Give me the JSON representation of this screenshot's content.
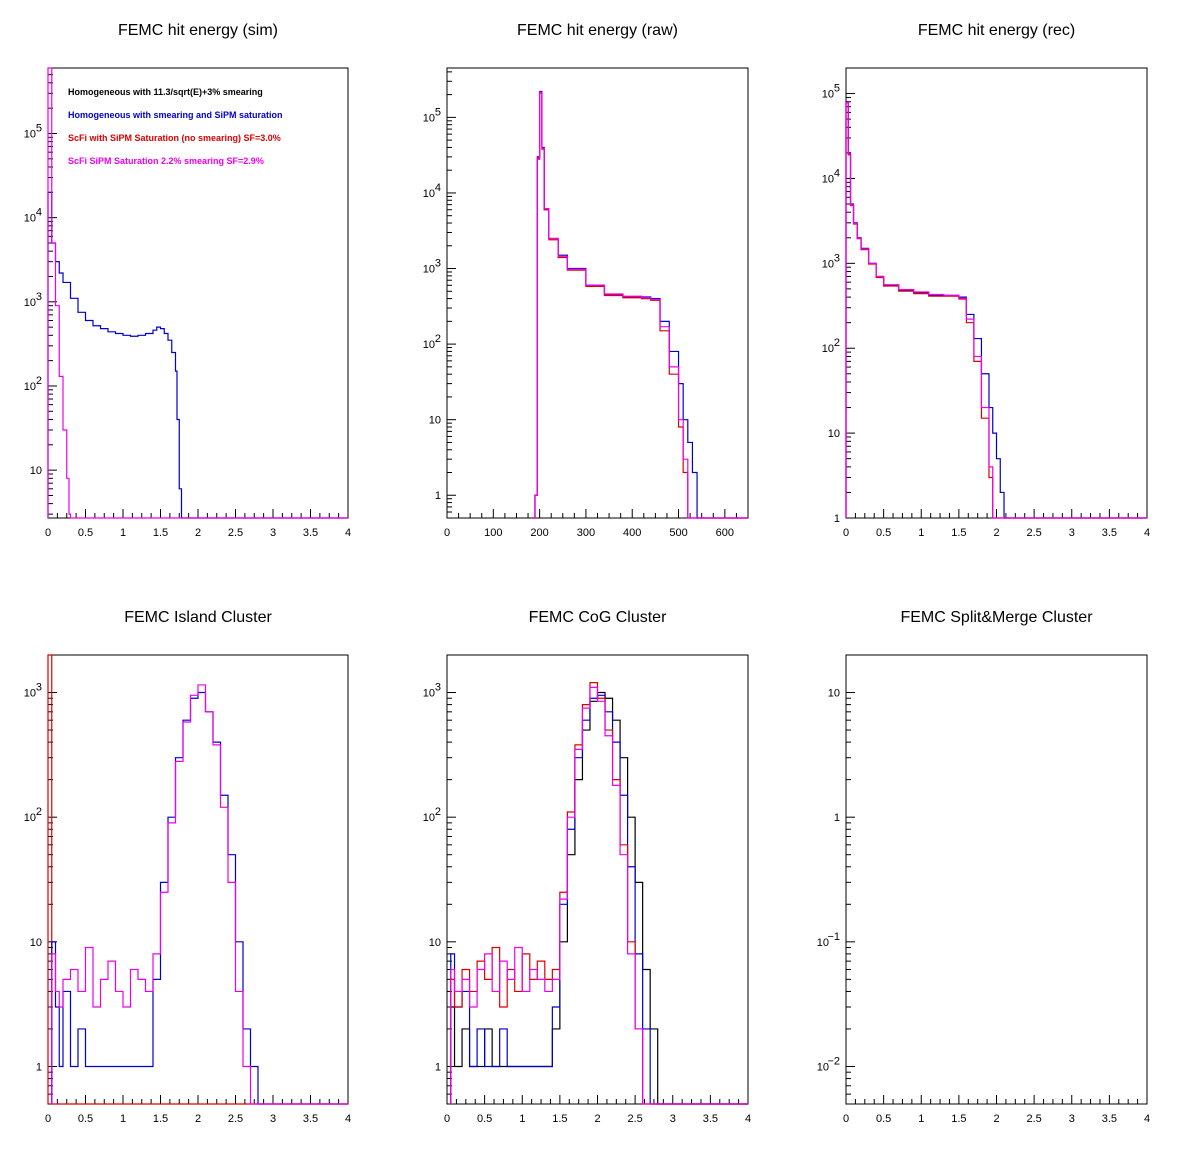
{
  "colors": {
    "black": "#000000",
    "blue": "#0000cc",
    "red": "#dd0000",
    "magenta": "#ee00ee"
  },
  "legend": [
    {
      "text": "Homogeneous with 11.3/sqrt(E)+3% smearing",
      "color": "#000000"
    },
    {
      "text": "Homogeneous with smearing and SiPM saturation",
      "color": "#0000cc"
    },
    {
      "text": "ScFi with SiPM Saturation (no smearing) SF=3.0%",
      "color": "#dd0000"
    },
    {
      "text": "ScFi SiPM Saturation 2.2% smearing SF=2.9%",
      "color": "#ee00ee"
    }
  ],
  "chart_data": [
    {
      "type": "line",
      "title": "FEMC hit energy (sim)",
      "logy": true,
      "xlim": [
        0,
        4
      ],
      "ylim": [
        2.7,
        600000
      ],
      "xticklabels": [
        "0",
        "0.5",
        "1",
        "1.5",
        "2",
        "2.5",
        "3",
        "3.5",
        "4"
      ],
      "yticks": [
        {
          "v": 10,
          "b": "10",
          "e": ""
        },
        {
          "v": 100,
          "b": "10",
          "e": "2"
        },
        {
          "v": 1000,
          "b": "10",
          "e": "3"
        },
        {
          "v": 10000,
          "b": "10",
          "e": "4"
        },
        {
          "v": 100000,
          "b": "10",
          "e": "5"
        }
      ],
      "series": [
        {
          "color": "#0000cc",
          "x": [
            0,
            0.05,
            0.1,
            0.15,
            0.2,
            0.3,
            0.4,
            0.5,
            0.6,
            0.7,
            0.8,
            0.9,
            1.0,
            1.1,
            1.2,
            1.3,
            1.4,
            1.45,
            1.5,
            1.55,
            1.6,
            1.65,
            1.7,
            1.72,
            1.75,
            1.78
          ],
          "y": [
            20000,
            5000,
            3000,
            2200,
            1700,
            1100,
            750,
            600,
            520,
            480,
            440,
            420,
            400,
            390,
            400,
            420,
            460,
            500,
            480,
            420,
            350,
            250,
            150,
            40,
            6,
            2
          ]
        },
        {
          "color": "#ee00ee",
          "x": [
            0,
            0.05,
            0.1,
            0.15,
            0.2,
            0.25,
            0.28,
            0.3
          ],
          "y": [
            600000,
            5000,
            900,
            130,
            30,
            8,
            3,
            2
          ]
        }
      ]
    },
    {
      "type": "line",
      "title": "FEMC hit energy (raw)",
      "logy": true,
      "xlim": [
        0,
        650
      ],
      "ylim": [
        0.5,
        450000
      ],
      "xticklabels": [
        "0",
        "100",
        "200",
        "300",
        "400",
        "500",
        "600"
      ],
      "xtickvals": [
        0,
        100,
        200,
        300,
        400,
        500,
        600
      ],
      "yticks": [
        {
          "v": 1,
          "b": "1",
          "e": ""
        },
        {
          "v": 10,
          "b": "10",
          "e": ""
        },
        {
          "v": 100,
          "b": "10",
          "e": "2"
        },
        {
          "v": 1000,
          "b": "10",
          "e": "3"
        },
        {
          "v": 10000,
          "b": "10",
          "e": "4"
        },
        {
          "v": 100000,
          "b": "10",
          "e": "5"
        }
      ],
      "series": [
        {
          "color": "#0000cc",
          "x": [
            185,
            190,
            195,
            200,
            205,
            210,
            220,
            240,
            260,
            300,
            340,
            380,
            420,
            440,
            460,
            480,
            500,
            510,
            520,
            530,
            540
          ],
          "y": [
            0.3,
            1,
            30000,
            220000,
            40000,
            6000,
            2500,
            1500,
            1000,
            600,
            450,
            420,
            420,
            400,
            200,
            80,
            30,
            10,
            5,
            2,
            0.3
          ]
        },
        {
          "color": "#dd0000",
          "x": [
            185,
            190,
            195,
            200,
            205,
            210,
            220,
            240,
            260,
            300,
            340,
            380,
            420,
            440,
            460,
            480,
            500,
            510,
            520
          ],
          "y": [
            0.3,
            1,
            28000,
            210000,
            38000,
            6000,
            2400,
            1400,
            950,
            580,
            440,
            410,
            400,
            380,
            150,
            40,
            8,
            2,
            0.3
          ]
        },
        {
          "color": "#ee00ee",
          "x": [
            185,
            190,
            195,
            200,
            205,
            210,
            220,
            240,
            260,
            300,
            340,
            380,
            420,
            440,
            460,
            480,
            500,
            510,
            520
          ],
          "y": [
            0.3,
            1,
            29000,
            215000,
            39000,
            6200,
            2500,
            1450,
            980,
            600,
            460,
            430,
            410,
            390,
            170,
            50,
            10,
            3,
            0.3
          ]
        }
      ]
    },
    {
      "type": "line",
      "title": "FEMC hit energy (rec)",
      "logy": true,
      "xlim": [
        0,
        4
      ],
      "ylim": [
        1,
        200000
      ],
      "xticklabels": [
        "0",
        "0.5",
        "1",
        "1.5",
        "2",
        "2.5",
        "3",
        "3.5",
        "4"
      ],
      "yticks": [
        {
          "v": 1,
          "b": "1",
          "e": ""
        },
        {
          "v": 10,
          "b": "10",
          "e": ""
        },
        {
          "v": 100,
          "b": "10",
          "e": "2"
        },
        {
          "v": 1000,
          "b": "10",
          "e": "3"
        },
        {
          "v": 10000,
          "b": "10",
          "e": "4"
        },
        {
          "v": 100000,
          "b": "10",
          "e": "5"
        }
      ],
      "series": [
        {
          "color": "#0000cc",
          "x": [
            0,
            0.03,
            0.06,
            0.1,
            0.15,
            0.2,
            0.3,
            0.4,
            0.5,
            0.7,
            0.9,
            1.1,
            1.3,
            1.5,
            1.6,
            1.7,
            1.8,
            1.9,
            1.95,
            2.0,
            2.05,
            2.1,
            2.15
          ],
          "y": [
            80000,
            20000,
            5000,
            3000,
            2000,
            1500,
            1000,
            700,
            550,
            480,
            450,
            420,
            420,
            400,
            250,
            130,
            50,
            20,
            10,
            5,
            2,
            1,
            0.5
          ]
        },
        {
          "color": "#dd0000",
          "x": [
            0,
            0.03,
            0.06,
            0.1,
            0.15,
            0.2,
            0.3,
            0.4,
            0.5,
            0.7,
            0.9,
            1.1,
            1.3,
            1.5,
            1.6,
            1.7,
            1.8,
            1.9,
            1.95,
            2.0
          ],
          "y": [
            78000,
            19000,
            4800,
            2900,
            1950,
            1450,
            980,
            680,
            540,
            470,
            440,
            410,
            410,
            380,
            200,
            70,
            15,
            3,
            1,
            0.5
          ]
        },
        {
          "color": "#ee00ee",
          "x": [
            0,
            0.03,
            0.06,
            0.1,
            0.15,
            0.2,
            0.3,
            0.4,
            0.5,
            0.7,
            0.9,
            1.1,
            1.3,
            1.5,
            1.6,
            1.7,
            1.8,
            1.9,
            1.95,
            2.0
          ],
          "y": [
            79000,
            19500,
            4900,
            2950,
            1980,
            1480,
            1000,
            700,
            560,
            490,
            460,
            430,
            420,
            390,
            220,
            80,
            20,
            4,
            1,
            0.5
          ]
        }
      ]
    },
    {
      "type": "line",
      "title": "FEMC Island Cluster",
      "logy": true,
      "xlim": [
        0,
        4
      ],
      "ylim": [
        0.5,
        2000
      ],
      "xticklabels": [
        "0",
        "0.5",
        "1",
        "1.5",
        "2",
        "2.5",
        "3",
        "3.5",
        "4"
      ],
      "yticks": [
        {
          "v": 1,
          "b": "1",
          "e": ""
        },
        {
          "v": 10,
          "b": "10",
          "e": ""
        },
        {
          "v": 100,
          "b": "10",
          "e": "2"
        },
        {
          "v": 1000,
          "b": "10",
          "e": "3"
        }
      ],
      "series": [
        {
          "color": "#dd0000",
          "x": [
            0,
            0.02,
            0.05
          ],
          "y": [
            2000,
            2000,
            0.3
          ]
        },
        {
          "color": "#0000cc",
          "x": [
            0.05,
            0.1,
            0.15,
            0.2,
            0.3,
            0.4,
            0.5,
            0.6,
            0.7,
            0.8,
            0.9,
            1.0,
            1.1,
            1.2,
            1.3,
            1.4,
            1.5,
            1.6,
            1.7,
            1.8,
            1.9,
            2.0,
            2.1,
            2.2,
            2.3,
            2.4,
            2.5,
            2.6,
            2.7,
            2.8
          ],
          "y": [
            10,
            3,
            1,
            4,
            1,
            2,
            1,
            1,
            1,
            1,
            1,
            1,
            1,
            1,
            1,
            5,
            30,
            100,
            300,
            600,
            900,
            1000,
            700,
            400,
            150,
            50,
            10,
            2,
            1,
            0.4
          ]
        },
        {
          "color": "#ee00ee",
          "x": [
            0.05,
            0.1,
            0.15,
            0.2,
            0.3,
            0.4,
            0.5,
            0.6,
            0.7,
            0.8,
            0.9,
            1.0,
            1.1,
            1.2,
            1.3,
            1.4,
            1.5,
            1.6,
            1.7,
            1.8,
            1.9,
            2.0,
            2.1,
            2.2,
            2.3,
            2.4,
            2.5,
            2.6,
            2.7
          ],
          "y": [
            8,
            4,
            3,
            5,
            6,
            4,
            9,
            3,
            5,
            7,
            4,
            3,
            6,
            5,
            4,
            8,
            25,
            90,
            280,
            580,
            950,
            1150,
            700,
            380,
            120,
            30,
            4,
            1,
            0.4
          ]
        }
      ]
    },
    {
      "type": "line",
      "title": "FEMC CoG Cluster",
      "logy": true,
      "xlim": [
        0,
        4
      ],
      "ylim": [
        0.5,
        2000
      ],
      "xticklabels": [
        "0",
        "0.5",
        "1",
        "1.5",
        "2",
        "2.5",
        "3",
        "3.5",
        "4"
      ],
      "yticks": [
        {
          "v": 1,
          "b": "1",
          "e": ""
        },
        {
          "v": 10,
          "b": "10",
          "e": ""
        },
        {
          "v": 100,
          "b": "10",
          "e": "2"
        },
        {
          "v": 1000,
          "b": "10",
          "e": "3"
        }
      ],
      "series": [
        {
          "color": "#000000",
          "x": [
            0.05,
            0.1,
            0.2,
            0.3,
            0.4,
            0.5,
            0.6,
            0.7,
            0.8,
            0.9,
            1.0,
            1.1,
            1.2,
            1.3,
            1.4,
            1.5,
            1.6,
            1.7,
            1.8,
            1.9,
            2.0,
            2.1,
            2.2,
            2.3,
            2.4,
            2.5,
            2.6,
            2.7,
            2.8
          ],
          "y": [
            3,
            1,
            2,
            1,
            1,
            2,
            1,
            1,
            1,
            1,
            1,
            1,
            1,
            1,
            2,
            10,
            50,
            200,
            500,
            850,
            1000,
            900,
            600,
            300,
            100,
            30,
            6,
            2,
            0.4
          ]
        },
        {
          "color": "#0000cc",
          "x": [
            0.05,
            0.1,
            0.2,
            0.3,
            0.4,
            0.5,
            0.6,
            0.7,
            0.8,
            0.9,
            1.0,
            1.1,
            1.2,
            1.3,
            1.4,
            1.5,
            1.6,
            1.7,
            1.8,
            1.9,
            2.0,
            2.1,
            2.2,
            2.3,
            2.4,
            2.5,
            2.6,
            2.7
          ],
          "y": [
            8,
            3,
            4,
            1,
            2,
            1,
            1,
            2,
            1,
            1,
            1,
            1,
            1,
            1,
            3,
            20,
            80,
            300,
            600,
            900,
            950,
            700,
            400,
            150,
            40,
            8,
            2,
            0.4
          ]
        },
        {
          "color": "#dd0000",
          "x": [
            0.05,
            0.1,
            0.2,
            0.3,
            0.4,
            0.5,
            0.6,
            0.7,
            0.8,
            0.9,
            1.0,
            1.1,
            1.2,
            1.3,
            1.4,
            1.5,
            1.6,
            1.7,
            1.8,
            1.9,
            2.0,
            2.1,
            2.2,
            2.3,
            2.4,
            2.5,
            2.6
          ],
          "y": [
            5,
            3,
            6,
            4,
            7,
            5,
            9,
            3,
            6,
            4,
            8,
            5,
            7,
            5,
            6,
            25,
            110,
            380,
            800,
            1200,
            900,
            500,
            200,
            60,
            10,
            2,
            0.4
          ]
        },
        {
          "color": "#ee00ee",
          "x": [
            0.05,
            0.1,
            0.2,
            0.3,
            0.4,
            0.5,
            0.6,
            0.7,
            0.8,
            0.9,
            1.0,
            1.1,
            1.2,
            1.3,
            1.4,
            1.5,
            1.6,
            1.7,
            1.8,
            1.9,
            2.0,
            2.1,
            2.2,
            2.3,
            2.4,
            2.5,
            2.6
          ],
          "y": [
            6,
            4,
            5,
            3,
            6,
            8,
            4,
            7,
            5,
            9,
            4,
            6,
            5,
            4,
            5,
            22,
            100,
            350,
            750,
            1100,
            850,
            450,
            180,
            50,
            8,
            2,
            0.4
          ]
        }
      ]
    },
    {
      "type": "line",
      "title": "FEMC Split&Merge Cluster",
      "logy": true,
      "xlim": [
        0,
        4
      ],
      "ylim": [
        0.005,
        20
      ],
      "xticklabels": [
        "0",
        "0.5",
        "1",
        "1.5",
        "2",
        "2.5",
        "3",
        "3.5",
        "4"
      ],
      "yticks": [
        {
          "v": 0.01,
          "b": "10",
          "e": "−2"
        },
        {
          "v": 0.1,
          "b": "10",
          "e": "−1"
        },
        {
          "v": 1,
          "b": "1",
          "e": ""
        },
        {
          "v": 10,
          "b": "10",
          "e": ""
        }
      ],
      "series": []
    }
  ]
}
